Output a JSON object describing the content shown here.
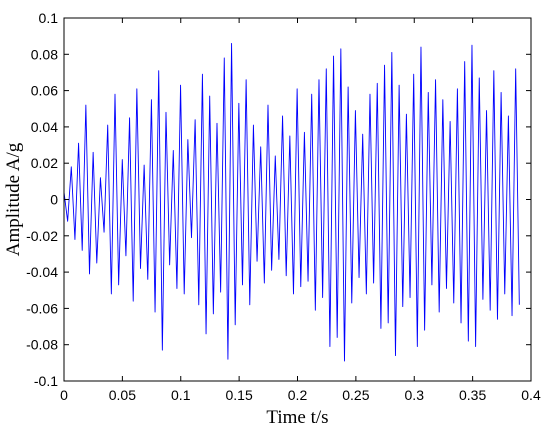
{
  "chart_data": {
    "type": "line",
    "xlabel": "Time t/s",
    "ylabel": "Amplitude A/g",
    "xlim": [
      0,
      0.4
    ],
    "ylim": [
      -0.1,
      0.1
    ],
    "xticks": [
      0,
      0.05,
      0.1,
      0.15,
      0.2,
      0.25,
      0.3,
      0.35,
      0.4
    ],
    "xtick_labels": [
      "0",
      "0.05",
      "0.1",
      "0.15",
      "0.2",
      "0.25",
      "0.3",
      "0.35",
      "0.4"
    ],
    "yticks": [
      -0.1,
      -0.08,
      -0.06,
      -0.04,
      -0.02,
      0,
      0.02,
      0.04,
      0.06,
      0.08,
      0.1
    ],
    "ytick_labels": [
      "-0.1",
      "-0.08",
      "-0.06",
      "-0.04",
      "-0.02",
      "0",
      "0.02",
      "0.04",
      "0.06",
      "0.08",
      "0.1"
    ],
    "grid": false,
    "line_color": "#0000ff",
    "series": [
      {
        "x_start": 0,
        "x_end": 0.39,
        "values": [
          0.004,
          -0.012,
          0.018,
          -0.022,
          0.031,
          -0.028,
          0.052,
          -0.041,
          0.026,
          -0.035,
          0.012,
          -0.018,
          0.041,
          -0.052,
          0.058,
          -0.047,
          0.022,
          -0.031,
          0.045,
          -0.056,
          0.061,
          -0.038,
          0.019,
          -0.044,
          0.055,
          -0.062,
          0.071,
          -0.083,
          0.048,
          -0.036,
          0.027,
          -0.049,
          0.063,
          -0.052,
          0.033,
          -0.021,
          0.044,
          -0.058,
          0.069,
          -0.074,
          0.057,
          -0.063,
          0.042,
          -0.051,
          0.078,
          -0.088,
          0.086,
          -0.069,
          0.053,
          -0.047,
          0.066,
          -0.058,
          0.041,
          -0.034,
          0.029,
          -0.046,
          0.052,
          -0.039,
          0.024,
          -0.033,
          0.046,
          -0.042,
          0.035,
          -0.052,
          0.061,
          -0.048,
          0.037,
          -0.045,
          0.058,
          -0.061,
          0.066,
          -0.054,
          0.072,
          -0.081,
          0.079,
          -0.076,
          0.083,
          -0.089,
          0.062,
          -0.057,
          0.049,
          -0.043,
          0.036,
          -0.052,
          0.058,
          -0.046,
          0.064,
          -0.071,
          0.074,
          -0.068,
          0.081,
          -0.086,
          0.063,
          -0.059,
          0.047,
          -0.054,
          0.069,
          -0.081,
          0.084,
          -0.072,
          0.059,
          -0.047,
          0.066,
          -0.062,
          0.055,
          -0.049,
          0.043,
          -0.057,
          0.061,
          -0.068,
          0.076,
          -0.078,
          0.085,
          -0.081,
          0.067,
          -0.055,
          0.049,
          -0.061,
          0.071,
          -0.066,
          0.059,
          -0.052,
          0.046,
          -0.064,
          0.072,
          -0.058
        ]
      }
    ]
  }
}
